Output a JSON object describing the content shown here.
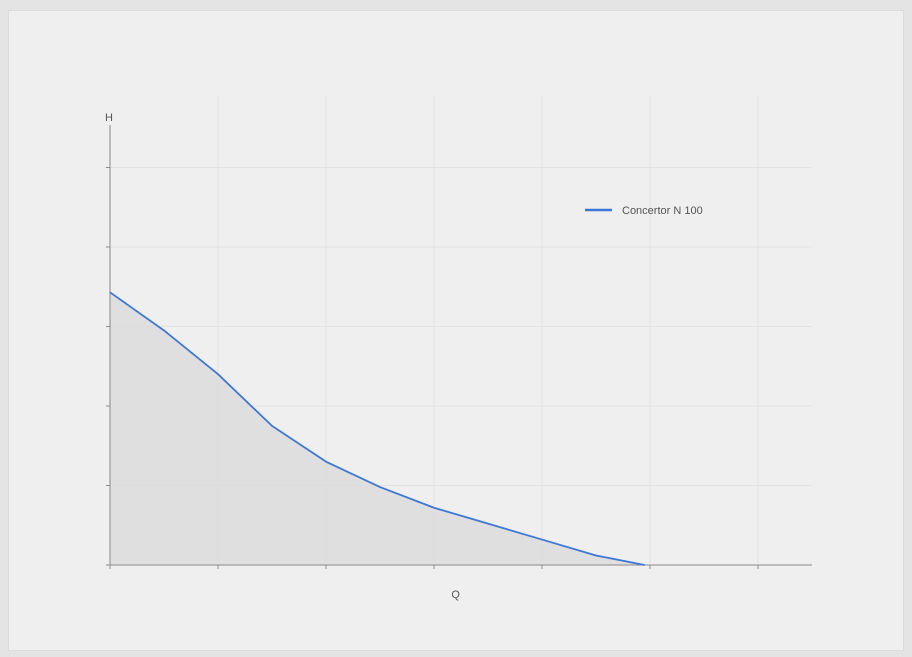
{
  "chart_data": {
    "type": "area",
    "xlabel": "Q",
    "ylabel": "H",
    "grid": true,
    "legend_position": "top-right",
    "xlim": [
      0,
      6.5
    ],
    "ylim": [
      0,
      5.5
    ],
    "x_ticks": [
      0,
      1,
      2,
      3,
      4,
      5,
      6
    ],
    "y_ticks": [
      0,
      1,
      2,
      3,
      4,
      5
    ],
    "series": [
      {
        "name": "Concertor N 100",
        "color": "#3c78d8",
        "fill": "#d9d9d9",
        "x": [
          0,
          0.5,
          1,
          1.5,
          2,
          2.5,
          3,
          3.5,
          4,
          4.5,
          4.95
        ],
        "y": [
          3.43,
          2.95,
          2.4,
          1.75,
          1.3,
          0.98,
          0.72,
          0.52,
          0.32,
          0.12,
          0.0
        ]
      }
    ]
  }
}
